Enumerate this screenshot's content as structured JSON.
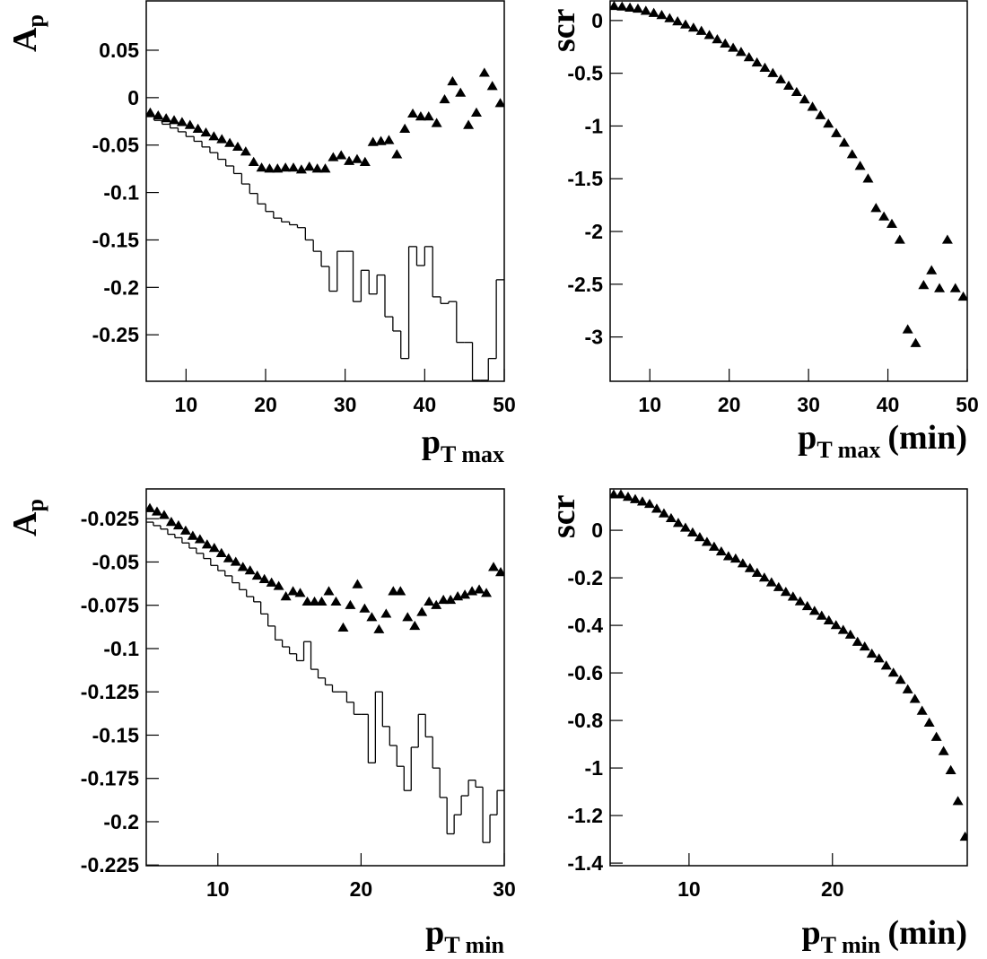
{
  "chart_data": [
    {
      "type": "scatter",
      "ylabel": "A",
      "ylabel_sub": "p",
      "xlabel": "p",
      "xlabel_sub": "T max",
      "xlim": [
        5,
        50
      ],
      "xticks": [
        10,
        20,
        30,
        40,
        50
      ],
      "ylim": [
        -0.299,
        0.102
      ],
      "yticks": [
        -0.25,
        -0.2,
        -0.15,
        -0.1,
        -0.05,
        0,
        0.05
      ],
      "x": [
        5.5,
        6.5,
        7.5,
        8.5,
        9.5,
        10.5,
        11.5,
        12.5,
        13.5,
        14.5,
        15.5,
        16.5,
        17.5,
        18.5,
        19.5,
        20.5,
        21.5,
        22.5,
        23.5,
        24.5,
        25.5,
        26.5,
        27.5,
        28.5,
        29.5,
        30.5,
        31.5,
        32.5,
        33.5,
        34.5,
        35.5,
        36.5,
        37.5,
        38.5,
        39.5,
        40.5,
        41.5,
        42.5,
        43.5,
        44.5,
        45.5,
        46.5,
        47.5,
        48.5,
        49.5
      ],
      "series": [
        {
          "color": "#000000",
          "values": [
            -0.016,
            -0.019,
            -0.022,
            -0.024,
            -0.026,
            -0.029,
            -0.033,
            -0.037,
            -0.041,
            -0.044,
            -0.048,
            -0.052,
            -0.057,
            -0.068,
            -0.074,
            -0.075,
            -0.075,
            -0.074,
            -0.074,
            -0.076,
            -0.073,
            -0.075,
            -0.075,
            -0.063,
            -0.061,
            -0.067,
            -0.065,
            -0.068,
            -0.047,
            -0.046,
            -0.045,
            -0.06,
            -0.033,
            -0.017,
            -0.02,
            -0.02,
            -0.027,
            -0.002,
            0.017,
            0.005,
            -0.029,
            -0.016,
            0.026,
            0.012,
            -0.006
          ]
        }
      ],
      "histogram": {
        "color": "#000000",
        "bins": [
          5,
          6,
          7,
          8,
          9,
          10,
          11,
          12,
          13,
          14,
          15,
          16,
          17,
          18,
          19,
          20,
          21,
          22,
          23,
          24,
          25,
          26,
          27,
          28,
          29,
          30,
          31,
          32,
          33,
          34,
          35,
          36,
          37,
          38,
          39,
          40,
          41,
          42,
          43,
          44,
          45,
          46,
          47,
          48,
          49,
          50
        ],
        "counts": [
          -0.02,
          -0.024,
          -0.028,
          -0.032,
          -0.036,
          -0.041,
          -0.046,
          -0.052,
          -0.058,
          -0.065,
          -0.072,
          -0.08,
          -0.091,
          -0.101,
          -0.112,
          -0.12,
          -0.127,
          -0.131,
          -0.134,
          -0.137,
          -0.15,
          -0.162,
          -0.178,
          -0.204,
          -0.162,
          -0.162,
          -0.215,
          -0.182,
          -0.207,
          -0.187,
          -0.231,
          -0.246,
          -0.275,
          -0.157,
          -0.177,
          -0.157,
          -0.21,
          -0.217,
          -0.215,
          -0.258,
          -0.258,
          -0.298,
          -0.298,
          -0.275,
          -0.192
        ]
      }
    },
    {
      "type": "scatter",
      "ylabel": "scr",
      "xlabel": "p",
      "xlabel_sub": "T max",
      "xlabel_suffix": "(min)",
      "xlim": [
        5,
        50
      ],
      "xticks": [
        10,
        20,
        30,
        40,
        50
      ],
      "ylim": [
        -3.42,
        0.186
      ],
      "yticks": [
        -3,
        -2.5,
        -2,
        -1.5,
        -1,
        -0.5,
        0
      ],
      "x": [
        5.5,
        6.5,
        7.5,
        8.5,
        9.5,
        10.5,
        11.5,
        12.5,
        13.5,
        14.5,
        15.5,
        16.5,
        17.5,
        18.5,
        19.5,
        20.5,
        21.5,
        22.5,
        23.5,
        24.5,
        25.5,
        26.5,
        27.5,
        28.5,
        29.5,
        30.5,
        31.5,
        32.5,
        33.5,
        34.5,
        35.5,
        36.5,
        37.5,
        38.5,
        39.5,
        40.5,
        41.5,
        42.5,
        43.5,
        44.5,
        45.5,
        46.5,
        47.5,
        48.5,
        49.5
      ],
      "series": [
        {
          "color": "#000000",
          "values": [
            0.136,
            0.13,
            0.12,
            0.11,
            0.09,
            0.07,
            0.05,
            0.02,
            -0.01,
            -0.04,
            -0.07,
            -0.1,
            -0.14,
            -0.18,
            -0.22,
            -0.26,
            -0.3,
            -0.35,
            -0.4,
            -0.45,
            -0.5,
            -0.56,
            -0.62,
            -0.68,
            -0.75,
            -0.82,
            -0.9,
            -0.98,
            -1.07,
            -1.16,
            -1.27,
            -1.38,
            -1.5,
            -1.78,
            -1.86,
            -1.93,
            -2.08,
            -2.93,
            -3.06,
            -2.51,
            -2.37,
            -2.54,
            -2.08,
            -2.54,
            -2.62
          ]
        }
      ]
    },
    {
      "type": "scatter",
      "ylabel": "A",
      "ylabel_sub": "p",
      "xlabel": "p",
      "xlabel_sub": "T min",
      "xlim": [
        5,
        30
      ],
      "xticks": [
        10,
        20,
        30
      ],
      "ylim": [
        -0.2254,
        -0.0078
      ],
      "yticks": [
        -0.225,
        -0.2,
        -0.175,
        -0.15,
        -0.125,
        -0.1,
        -0.075,
        -0.05,
        -0.025
      ],
      "x": [
        5.25,
        5.75,
        6.25,
        6.75,
        7.25,
        7.75,
        8.25,
        8.75,
        9.25,
        9.75,
        10.25,
        10.75,
        11.25,
        11.75,
        12.25,
        12.75,
        13.25,
        13.75,
        14.25,
        14.75,
        15.25,
        15.75,
        16.25,
        16.75,
        17.25,
        17.75,
        18.25,
        18.75,
        19.25,
        19.75,
        20.25,
        20.75,
        21.25,
        21.75,
        22.25,
        22.75,
        23.25,
        23.75,
        24.25,
        24.75,
        25.25,
        25.75,
        26.25,
        26.75,
        27.25,
        27.75,
        28.25,
        28.75,
        29.25,
        29.75
      ],
      "series": [
        {
          "color": "#000000",
          "values": [
            -0.019,
            -0.021,
            -0.023,
            -0.027,
            -0.029,
            -0.032,
            -0.035,
            -0.037,
            -0.04,
            -0.042,
            -0.045,
            -0.048,
            -0.05,
            -0.053,
            -0.055,
            -0.058,
            -0.06,
            -0.062,
            -0.064,
            -0.07,
            -0.067,
            -0.068,
            -0.073,
            -0.073,
            -0.073,
            -0.067,
            -0.073,
            -0.088,
            -0.075,
            -0.063,
            -0.077,
            -0.082,
            -0.089,
            -0.08,
            -0.067,
            -0.067,
            -0.082,
            -0.087,
            -0.079,
            -0.073,
            -0.075,
            -0.072,
            -0.072,
            -0.07,
            -0.069,
            -0.067,
            -0.066,
            -0.068,
            -0.053,
            -0.056
          ]
        }
      ],
      "histogram": {
        "color": "#000000",
        "bins": [
          5,
          5.5,
          6,
          6.5,
          7,
          7.5,
          8,
          8.5,
          9,
          9.5,
          10,
          10.5,
          11,
          11.5,
          12,
          12.5,
          13,
          13.5,
          14,
          14.5,
          15,
          15.5,
          16,
          16.5,
          17,
          17.5,
          18,
          18.5,
          19,
          19.5,
          20,
          20.5,
          21,
          21.5,
          22,
          22.5,
          23,
          23.5,
          24,
          24.5,
          25,
          25.5,
          26,
          26.5,
          27,
          27.5,
          28,
          28.5,
          29,
          29.5,
          30
        ],
        "counts": [
          -0.027,
          -0.029,
          -0.031,
          -0.034,
          -0.036,
          -0.039,
          -0.042,
          -0.045,
          -0.048,
          -0.052,
          -0.055,
          -0.058,
          -0.062,
          -0.066,
          -0.07,
          -0.073,
          -0.08,
          -0.087,
          -0.095,
          -0.099,
          -0.103,
          -0.107,
          -0.096,
          -0.112,
          -0.117,
          -0.121,
          -0.125,
          -0.125,
          -0.131,
          -0.138,
          -0.138,
          -0.166,
          -0.125,
          -0.145,
          -0.156,
          -0.168,
          -0.182,
          -0.157,
          -0.138,
          -0.151,
          -0.169,
          -0.186,
          -0.207,
          -0.196,
          -0.185,
          -0.176,
          -0.18,
          -0.212,
          -0.196,
          -0.182
        ]
      }
    },
    {
      "type": "scatter",
      "ylabel": "scr",
      "xlabel": "p",
      "xlabel_sub": "T min",
      "xlabel_suffix": "(min)",
      "xlim": [
        4.5,
        29.4
      ],
      "xticks": [
        10,
        20
      ],
      "ylim": [
        -1.411,
        0.174
      ],
      "yticks": [
        -1.4,
        -1.2,
        -1,
        -0.8,
        -0.6,
        -0.4,
        -0.2,
        0
      ],
      "x": [
        4.75,
        5.25,
        5.75,
        6.25,
        6.75,
        7.25,
        7.75,
        8.25,
        8.75,
        9.25,
        9.75,
        10.25,
        10.75,
        11.25,
        11.75,
        12.25,
        12.75,
        13.25,
        13.75,
        14.25,
        14.75,
        15.25,
        15.75,
        16.25,
        16.75,
        17.25,
        17.75,
        18.25,
        18.75,
        19.25,
        19.75,
        20.25,
        20.75,
        21.25,
        21.75,
        22.25,
        22.75,
        23.25,
        23.75,
        24.25,
        24.75,
        25.25,
        25.75,
        26.25,
        26.75,
        27.25,
        27.75,
        28.25,
        28.75,
        29.25
      ],
      "series": [
        {
          "color": "#000000",
          "values": [
            0.15,
            0.15,
            0.14,
            0.13,
            0.12,
            0.11,
            0.09,
            0.07,
            0.05,
            0.03,
            0.01,
            -0.01,
            -0.03,
            -0.05,
            -0.07,
            -0.09,
            -0.11,
            -0.12,
            -0.14,
            -0.16,
            -0.18,
            -0.2,
            -0.22,
            -0.24,
            -0.26,
            -0.28,
            -0.3,
            -0.32,
            -0.34,
            -0.36,
            -0.38,
            -0.4,
            -0.42,
            -0.44,
            -0.47,
            -0.49,
            -0.52,
            -0.54,
            -0.57,
            -0.6,
            -0.63,
            -0.67,
            -0.71,
            -0.76,
            -0.81,
            -0.87,
            -0.93,
            -1.01,
            -1.14,
            -1.29
          ]
        }
      ]
    }
  ]
}
